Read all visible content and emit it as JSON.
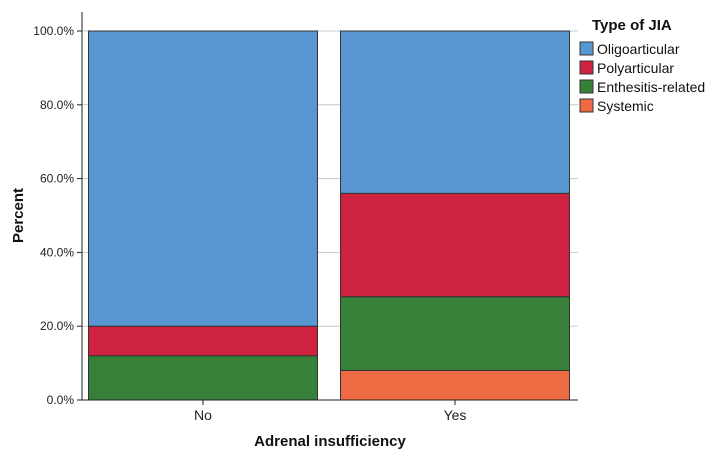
{
  "chart_data": {
    "type": "bar",
    "stacked": true,
    "categories": [
      "No",
      "Yes"
    ],
    "series": [
      {
        "name": "Systemic",
        "color": "#EE6A43",
        "values": [
          0.0,
          8.0
        ]
      },
      {
        "name": "Enthesitis-related",
        "color": "#37803A",
        "values": [
          12.0,
          20.0
        ]
      },
      {
        "name": "Polyarticular",
        "color": "#CF2240",
        "values": [
          8.0,
          28.0
        ]
      },
      {
        "name": "Oligoarticular",
        "color": "#5897D1",
        "values": [
          80.0,
          44.0
        ]
      }
    ],
    "legend_order": [
      "Oligoarticular",
      "Polyarticular",
      "Enthesitis-related",
      "Systemic"
    ],
    "legend_title": "Type of JIA",
    "legend_position": "top-right",
    "xlabel": "Adrenal insufficiency",
    "ylabel": "Percent",
    "ylim": [
      0,
      100
    ],
    "yticks": [
      "0.0%",
      "20.0%",
      "40.0%",
      "60.0%",
      "80.0%",
      "100.0%"
    ],
    "ytick_values": [
      0,
      20,
      40,
      60,
      80,
      100
    ],
    "grid": true
  }
}
